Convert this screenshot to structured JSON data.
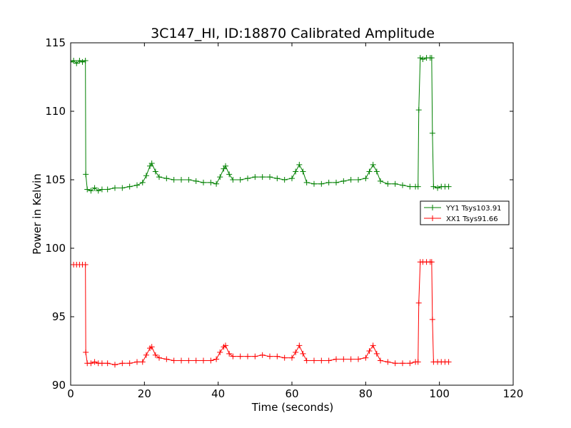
{
  "chart_data": {
    "type": "line",
    "title": "3C147_HI, ID:18870 Calibrated Amplitude",
    "xlabel": "Time (seconds)",
    "ylabel": "Power in Kelvin",
    "xlim": [
      0,
      120
    ],
    "ylim": [
      90,
      115
    ],
    "xticks": [
      0,
      20,
      40,
      60,
      80,
      100,
      120
    ],
    "yticks": [
      90,
      95,
      100,
      105,
      110,
      115
    ],
    "grid": false,
    "legend_position": "right",
    "marker": "+",
    "series": [
      {
        "name": "YY1 Tsys103.91",
        "color": "#008000",
        "points": [
          [
            0.0,
            113.6
          ],
          [
            0.8,
            113.7
          ],
          [
            1.6,
            113.5
          ],
          [
            2.4,
            113.7
          ],
          [
            3.2,
            113.6
          ],
          [
            4.0,
            113.7
          ],
          [
            4.1,
            105.4
          ],
          [
            4.5,
            104.3
          ],
          [
            5.5,
            104.2
          ],
          [
            6.5,
            104.4
          ],
          [
            7.5,
            104.2
          ],
          [
            8.5,
            104.3
          ],
          [
            10.0,
            104.3
          ],
          [
            12.0,
            104.4
          ],
          [
            14.0,
            104.4
          ],
          [
            16.0,
            104.5
          ],
          [
            18.0,
            104.6
          ],
          [
            19.5,
            104.8
          ],
          [
            20.5,
            105.3
          ],
          [
            21.5,
            106.0
          ],
          [
            22.0,
            106.2
          ],
          [
            23.0,
            105.6
          ],
          [
            24.0,
            105.2
          ],
          [
            26.0,
            105.1
          ],
          [
            28.0,
            105.0
          ],
          [
            30.0,
            105.0
          ],
          [
            32.0,
            105.0
          ],
          [
            34.0,
            104.9
          ],
          [
            36.0,
            104.8
          ],
          [
            38.0,
            104.8
          ],
          [
            39.5,
            104.7
          ],
          [
            40.5,
            105.2
          ],
          [
            41.5,
            105.8
          ],
          [
            42.0,
            106.0
          ],
          [
            43.0,
            105.4
          ],
          [
            44.0,
            105.0
          ],
          [
            46.0,
            105.0
          ],
          [
            48.0,
            105.1
          ],
          [
            50.0,
            105.2
          ],
          [
            52.0,
            105.2
          ],
          [
            54.0,
            105.2
          ],
          [
            56.0,
            105.1
          ],
          [
            58.0,
            105.0
          ],
          [
            60.0,
            105.1
          ],
          [
            61.0,
            105.6
          ],
          [
            62.0,
            106.1
          ],
          [
            63.0,
            105.6
          ],
          [
            64.0,
            104.8
          ],
          [
            66.0,
            104.7
          ],
          [
            68.0,
            104.7
          ],
          [
            70.0,
            104.8
          ],
          [
            72.0,
            104.8
          ],
          [
            74.0,
            104.9
          ],
          [
            76.0,
            105.0
          ],
          [
            78.0,
            105.0
          ],
          [
            80.0,
            105.1
          ],
          [
            81.0,
            105.6
          ],
          [
            82.0,
            106.1
          ],
          [
            83.0,
            105.6
          ],
          [
            84.0,
            104.9
          ],
          [
            86.0,
            104.7
          ],
          [
            88.0,
            104.7
          ],
          [
            90.0,
            104.6
          ],
          [
            92.0,
            104.5
          ],
          [
            93.5,
            104.5
          ],
          [
            94.2,
            104.5
          ],
          [
            94.4,
            110.1
          ],
          [
            94.8,
            113.9
          ],
          [
            95.5,
            113.8
          ],
          [
            96.5,
            113.9
          ],
          [
            97.5,
            113.9
          ],
          [
            97.9,
            113.9
          ],
          [
            98.1,
            108.4
          ],
          [
            98.4,
            104.5
          ],
          [
            99.5,
            104.4
          ],
          [
            100.5,
            104.5
          ],
          [
            101.5,
            104.5
          ],
          [
            102.5,
            104.5
          ]
        ]
      },
      {
        "name": "XX1 Tsys91.66",
        "color": "#ff0000",
        "points": [
          [
            0.0,
            98.8
          ],
          [
            0.8,
            98.8
          ],
          [
            1.6,
            98.8
          ],
          [
            2.4,
            98.8
          ],
          [
            3.2,
            98.8
          ],
          [
            4.0,
            98.8
          ],
          [
            4.1,
            92.4
          ],
          [
            4.5,
            91.6
          ],
          [
            5.5,
            91.6
          ],
          [
            6.5,
            91.7
          ],
          [
            7.5,
            91.6
          ],
          [
            8.5,
            91.6
          ],
          [
            10.0,
            91.6
          ],
          [
            12.0,
            91.5
          ],
          [
            14.0,
            91.6
          ],
          [
            16.0,
            91.6
          ],
          [
            18.0,
            91.7
          ],
          [
            19.5,
            91.7
          ],
          [
            20.5,
            92.2
          ],
          [
            21.5,
            92.7
          ],
          [
            22.0,
            92.8
          ],
          [
            23.0,
            92.2
          ],
          [
            24.0,
            92.0
          ],
          [
            26.0,
            91.9
          ],
          [
            28.0,
            91.8
          ],
          [
            30.0,
            91.8
          ],
          [
            32.0,
            91.8
          ],
          [
            34.0,
            91.8
          ],
          [
            36.0,
            91.8
          ],
          [
            38.0,
            91.8
          ],
          [
            39.5,
            91.9
          ],
          [
            40.5,
            92.4
          ],
          [
            41.5,
            92.8
          ],
          [
            42.0,
            92.9
          ],
          [
            43.0,
            92.3
          ],
          [
            44.0,
            92.1
          ],
          [
            46.0,
            92.1
          ],
          [
            48.0,
            92.1
          ],
          [
            50.0,
            92.1
          ],
          [
            52.0,
            92.2
          ],
          [
            54.0,
            92.1
          ],
          [
            56.0,
            92.1
          ],
          [
            58.0,
            92.0
          ],
          [
            60.0,
            92.0
          ],
          [
            61.0,
            92.4
          ],
          [
            62.0,
            92.9
          ],
          [
            63.0,
            92.3
          ],
          [
            64.0,
            91.8
          ],
          [
            66.0,
            91.8
          ],
          [
            68.0,
            91.8
          ],
          [
            70.0,
            91.8
          ],
          [
            72.0,
            91.9
          ],
          [
            74.0,
            91.9
          ],
          [
            76.0,
            91.9
          ],
          [
            78.0,
            91.9
          ],
          [
            80.0,
            92.0
          ],
          [
            81.0,
            92.5
          ],
          [
            82.0,
            92.9
          ],
          [
            83.0,
            92.3
          ],
          [
            84.0,
            91.8
          ],
          [
            86.0,
            91.7
          ],
          [
            88.0,
            91.6
          ],
          [
            90.0,
            91.6
          ],
          [
            92.0,
            91.6
          ],
          [
            93.5,
            91.7
          ],
          [
            94.2,
            91.7
          ],
          [
            94.4,
            96.0
          ],
          [
            94.8,
            99.0
          ],
          [
            95.5,
            99.0
          ],
          [
            96.5,
            99.0
          ],
          [
            97.5,
            99.0
          ],
          [
            97.9,
            99.0
          ],
          [
            98.1,
            94.8
          ],
          [
            98.4,
            91.7
          ],
          [
            99.5,
            91.7
          ],
          [
            100.5,
            91.7
          ],
          [
            101.5,
            91.7
          ],
          [
            102.5,
            91.7
          ]
        ]
      }
    ]
  }
}
